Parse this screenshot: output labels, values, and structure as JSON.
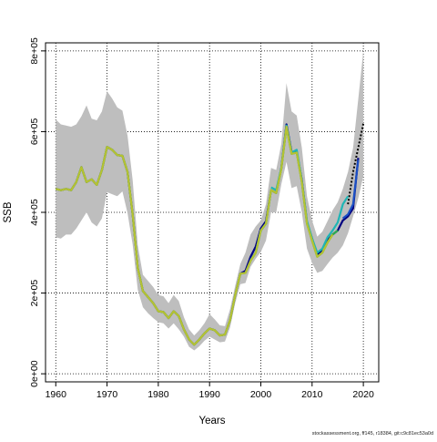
{
  "chart_data": {
    "type": "line",
    "xlabel": "Years",
    "ylabel": "SSB",
    "xlim": [
      1958,
      2023
    ],
    "ylim": [
      -20000,
      820000
    ],
    "x_ticks": [
      1960,
      1970,
      1980,
      1990,
      2000,
      2010,
      2020
    ],
    "y_ticks": [
      0,
      200000,
      400000,
      600000,
      800000
    ],
    "y_tick_labels": [
      "0e+00",
      "2e+05",
      "4e+05",
      "6e+05",
      "8e+05"
    ],
    "grid": "dotted",
    "footer": "stockassessment.org, ff145, r18384, git:c9c81ec53a0d",
    "band": {
      "color": "#bebebe",
      "x": [
        1960,
        1961,
        1962,
        1963,
        1964,
        1965,
        1966,
        1967,
        1968,
        1969,
        1970,
        1971,
        1972,
        1973,
        1974,
        1975,
        1976,
        1977,
        1978,
        1979,
        1980,
        1981,
        1982,
        1983,
        1984,
        1985,
        1986,
        1987,
        1988,
        1989,
        1990,
        1991,
        1992,
        1993,
        1994,
        1995,
        1996,
        1997,
        1998,
        1999,
        2000,
        2001,
        2002,
        2003,
        2004,
        2005,
        2006,
        2007,
        2008,
        2009,
        2010,
        2011,
        2012,
        2013,
        2014,
        2015,
        2016,
        2017,
        2018,
        2019,
        2020
      ],
      "upper": [
        630000,
        618000,
        615000,
        612000,
        618000,
        638000,
        665000,
        632000,
        628000,
        650000,
        700000,
        682000,
        660000,
        652000,
        590000,
        480000,
        318000,
        245000,
        230000,
        215000,
        195000,
        192000,
        175000,
        195000,
        180000,
        140000,
        110000,
        95000,
        108000,
        125000,
        148000,
        135000,
        120000,
        118000,
        160000,
        218000,
        272000,
        300000,
        345000,
        365000,
        380000,
        420000,
        510000,
        505000,
        570000,
        720000,
        650000,
        640000,
        560000,
        440000,
        380000,
        340000,
        352000,
        378000,
        405000,
        425000,
        458000,
        500000,
        560000,
        680000,
        800000
      ],
      "lower": [
        338000,
        335000,
        345000,
        345000,
        360000,
        380000,
        400000,
        375000,
        365000,
        385000,
        450000,
        445000,
        440000,
        452000,
        398000,
        320000,
        208000,
        165000,
        150000,
        138000,
        128000,
        125000,
        112000,
        125000,
        110000,
        92000,
        67000,
        58000,
        68000,
        82000,
        92000,
        85000,
        78000,
        80000,
        115000,
        175000,
        222000,
        225000,
        265000,
        285000,
        302000,
        330000,
        400000,
        400000,
        470000,
        525000,
        460000,
        465000,
        400000,
        310000,
        275000,
        250000,
        255000,
        272000,
        288000,
        300000,
        318000,
        348000,
        390000,
        435000,
        490000
      ]
    },
    "series": [
      {
        "color": "#000000",
        "dashed": true,
        "x": [
          2017,
          2018,
          2019,
          2020
        ],
        "values": [
          420000,
          500000,
          560000,
          620000
        ]
      },
      {
        "color": "#000080",
        "x": [
          1960,
          1961,
          1962,
          1963,
          1964,
          1965,
          1966,
          1967,
          1968,
          1969,
          1970,
          1971,
          1972,
          1973,
          1974,
          1975,
          1976,
          1977,
          1978,
          1979,
          1980,
          1981,
          1982,
          1983,
          1984,
          1985,
          1986,
          1987,
          1988,
          1989,
          1990,
          1991,
          1992,
          1993,
          1994,
          1995,
          1996,
          1997,
          1998,
          1999,
          2000,
          2001,
          2002,
          2003,
          2004,
          2005,
          2006,
          2007,
          2008,
          2009,
          2010,
          2011,
          2012,
          2013,
          2014,
          2015,
          2016,
          2017,
          2018,
          2019
        ],
        "values": [
          458000,
          455000,
          458000,
          455000,
          475000,
          512000,
          475000,
          482000,
          468000,
          505000,
          562000,
          555000,
          542000,
          540000,
          500000,
          395000,
          262000,
          205000,
          190000,
          175000,
          155000,
          153000,
          138000,
          155000,
          143000,
          110000,
          85000,
          72000,
          85000,
          100000,
          112000,
          108000,
          95000,
          97000,
          133000,
          195000,
          248000,
          255000,
          290000,
          315000,
          360000,
          378000,
          455000,
          448000,
          510000,
          618000,
          550000,
          550000,
          480000,
          375000,
          335000,
          295000,
          305000,
          330000,
          345000,
          355000,
          380000,
          390000,
          410000,
          535000
        ]
      },
      {
        "color": "#1a4fc4",
        "x": [
          2016,
          2017,
          2018,
          2019
        ],
        "values": [
          385000,
          395000,
          420000,
          530000
        ]
      },
      {
        "color": "#1e8fd6",
        "x": [
          1998,
          1999,
          2000,
          2001,
          2002
        ],
        "values": [
          282000,
          300000,
          355000,
          372000,
          455000
        ]
      },
      {
        "color": "#1fb5b5",
        "x": [
          2002,
          2003,
          2004,
          2005,
          2006,
          2007,
          2008,
          2009,
          2010,
          2011,
          2012,
          2013,
          2014,
          2015,
          2016,
          2017
        ],
        "values": [
          462000,
          455000,
          510000,
          615000,
          548000,
          555000,
          478000,
          378000,
          335000,
          300000,
          310000,
          338000,
          355000,
          375000,
          420000,
          440000
        ]
      },
      {
        "color": "#2fae4f",
        "x": [
          1960,
          1961,
          1962,
          1963,
          1964,
          1965,
          1966,
          1967,
          1968,
          1969,
          1970,
          1971,
          1972,
          1973,
          1974,
          1975,
          1976,
          1977,
          1978,
          1979,
          1980,
          1981,
          1982,
          1983,
          1984,
          1985,
          1986,
          1987,
          1988,
          1989,
          1990,
          1991,
          1992,
          1993,
          1994,
          1995,
          1996,
          1997,
          1998,
          1999,
          2000,
          2001,
          2002,
          2003,
          2004,
          2005,
          2006,
          2007,
          2008,
          2009,
          2010,
          2011,
          2012,
          2013,
          2014,
          2015
        ],
        "values": [
          458000,
          455000,
          458000,
          455000,
          475000,
          512000,
          475000,
          482000,
          468000,
          505000,
          562000,
          555000,
          542000,
          540000,
          500000,
          395000,
          262000,
          205000,
          190000,
          175000,
          155000,
          153000,
          138000,
          155000,
          143000,
          110000,
          85000,
          72000,
          85000,
          100000,
          112000,
          108000,
          95000,
          97000,
          133000,
          195000,
          248000,
          250000,
          280000,
          300000,
          355000,
          372000,
          455000,
          448000,
          508000,
          612000,
          545000,
          548000,
          475000,
          372000,
          330000,
          290000,
          300000,
          325000,
          345000,
          355000
        ]
      },
      {
        "color": "#b5c232",
        "x": [
          1960,
          1961,
          1962,
          1963,
          1964,
          1965,
          1966,
          1967,
          1968,
          1969,
          1970,
          1971,
          1972,
          1973,
          1974,
          1975,
          1976,
          1977,
          1978,
          1979,
          1980,
          1981,
          1982,
          1983,
          1984,
          1985,
          1986,
          1987,
          1988,
          1989,
          1990,
          1991,
          1992,
          1993,
          1994,
          1995,
          1996,
          1997,
          1998,
          1999,
          2000,
          2001,
          2002,
          2003,
          2004,
          2005,
          2006,
          2007,
          2008,
          2009,
          2010,
          2011,
          2012,
          2013,
          2014
        ],
        "values": [
          458000,
          455000,
          458000,
          455000,
          475000,
          512000,
          475000,
          482000,
          468000,
          505000,
          562000,
          555000,
          542000,
          540000,
          500000,
          395000,
          262000,
          205000,
          190000,
          175000,
          155000,
          153000,
          138000,
          155000,
          143000,
          110000,
          85000,
          72000,
          85000,
          100000,
          112000,
          108000,
          95000,
          97000,
          133000,
          195000,
          248000,
          250000,
          280000,
          300000,
          355000,
          372000,
          455000,
          448000,
          508000,
          612000,
          545000,
          548000,
          475000,
          372000,
          330000,
          290000,
          300000,
          325000,
          345000
        ]
      }
    ]
  }
}
